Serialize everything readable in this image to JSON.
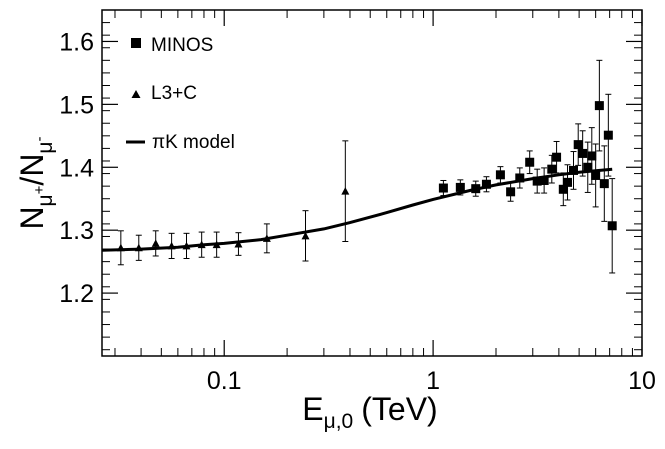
{
  "chart_data": {
    "type": "scatter",
    "title": "",
    "xscale": "log",
    "xlim": [
      0.026,
      10
    ],
    "ylim": [
      1.1,
      1.65
    ],
    "grid": false,
    "legend_position": "top-left",
    "xlabel": {
      "main": "E",
      "sub": "μ,0",
      "unit": "(TeV)"
    },
    "ylabel": {
      "n1": "N",
      "sub1": "μ",
      "sup1": "+",
      "slash": "/",
      "n2": "N",
      "sub2": "μ",
      "sup2": "-"
    },
    "xticks": [
      {
        "value": 0.1,
        "label": "0.1"
      },
      {
        "value": 1,
        "label": "1"
      },
      {
        "value": 10,
        "label": "10"
      }
    ],
    "yticks": [
      {
        "value": 1.2,
        "label": "1.2"
      },
      {
        "value": 1.3,
        "label": "1.3"
      },
      {
        "value": 1.4,
        "label": "1.4"
      },
      {
        "value": 1.5,
        "label": "1.5"
      },
      {
        "value": 1.6,
        "label": "1.6"
      }
    ],
    "series": [
      {
        "name": "MINOS",
        "marker": "square",
        "points": [
          {
            "x": 1.12,
            "y": 1.367,
            "err": 0.012
          },
          {
            "x": 1.35,
            "y": 1.368,
            "err": 0.012
          },
          {
            "x": 1.6,
            "y": 1.366,
            "err": 0.012
          },
          {
            "x": 1.8,
            "y": 1.373,
            "err": 0.012
          },
          {
            "x": 2.1,
            "y": 1.388,
            "err": 0.013
          },
          {
            "x": 2.35,
            "y": 1.361,
            "err": 0.015
          },
          {
            "x": 2.6,
            "y": 1.383,
            "err": 0.016
          },
          {
            "x": 2.9,
            "y": 1.408,
            "err": 0.018
          },
          {
            "x": 3.15,
            "y": 1.378,
            "err": 0.019
          },
          {
            "x": 3.4,
            "y": 1.379,
            "err": 0.02
          },
          {
            "x": 3.7,
            "y": 1.397,
            "err": 0.022
          },
          {
            "x": 3.9,
            "y": 1.416,
            "err": 0.025
          },
          {
            "x": 4.2,
            "y": 1.365,
            "err": 0.026
          },
          {
            "x": 4.4,
            "y": 1.376,
            "err": 0.028
          },
          {
            "x": 4.7,
            "y": 1.395,
            "err": 0.03
          },
          {
            "x": 4.95,
            "y": 1.436,
            "err": 0.033
          },
          {
            "x": 5.2,
            "y": 1.422,
            "err": 0.036
          },
          {
            "x": 5.5,
            "y": 1.4,
            "err": 0.04
          },
          {
            "x": 5.75,
            "y": 1.418,
            "err": 0.045
          },
          {
            "x": 6.0,
            "y": 1.387,
            "err": 0.05
          },
          {
            "x": 6.25,
            "y": 1.498,
            "err": 0.072
          },
          {
            "x": 6.6,
            "y": 1.374,
            "err": 0.06
          },
          {
            "x": 6.9,
            "y": 1.451,
            "err": 0.065
          },
          {
            "x": 7.2,
            "y": 1.307,
            "err": 0.075
          }
        ]
      },
      {
        "name": "L3+C",
        "marker": "triangle",
        "points": [
          {
            "x": 0.032,
            "y": 1.272,
            "err": 0.027
          },
          {
            "x": 0.039,
            "y": 1.272,
            "err": 0.02
          },
          {
            "x": 0.047,
            "y": 1.279,
            "err": 0.02
          },
          {
            "x": 0.056,
            "y": 1.275,
            "err": 0.02
          },
          {
            "x": 0.066,
            "y": 1.275,
            "err": 0.02
          },
          {
            "x": 0.078,
            "y": 1.277,
            "err": 0.02
          },
          {
            "x": 0.092,
            "y": 1.277,
            "err": 0.02
          },
          {
            "x": 0.117,
            "y": 1.278,
            "err": 0.018
          },
          {
            "x": 0.16,
            "y": 1.287,
            "err": 0.023
          },
          {
            "x": 0.245,
            "y": 1.291,
            "err": 0.04
          },
          {
            "x": 0.38,
            "y": 1.362,
            "err": 0.08
          }
        ]
      },
      {
        "name": "πK model",
        "marker": "line",
        "points": [
          {
            "x": 0.026,
            "y": 1.268
          },
          {
            "x": 0.04,
            "y": 1.27
          },
          {
            "x": 0.06,
            "y": 1.273
          },
          {
            "x": 0.08,
            "y": 1.277
          },
          {
            "x": 0.1,
            "y": 1.279
          },
          {
            "x": 0.15,
            "y": 1.285
          },
          {
            "x": 0.2,
            "y": 1.292
          },
          {
            "x": 0.3,
            "y": 1.302
          },
          {
            "x": 0.4,
            "y": 1.312
          },
          {
            "x": 0.6,
            "y": 1.328
          },
          {
            "x": 0.8,
            "y": 1.34
          },
          {
            "x": 1.0,
            "y": 1.349
          },
          {
            "x": 1.5,
            "y": 1.363
          },
          {
            "x": 2.0,
            "y": 1.372
          },
          {
            "x": 3.0,
            "y": 1.382
          },
          {
            "x": 4.0,
            "y": 1.388
          },
          {
            "x": 5.0,
            "y": 1.392
          },
          {
            "x": 7.2,
            "y": 1.397
          }
        ]
      }
    ]
  }
}
